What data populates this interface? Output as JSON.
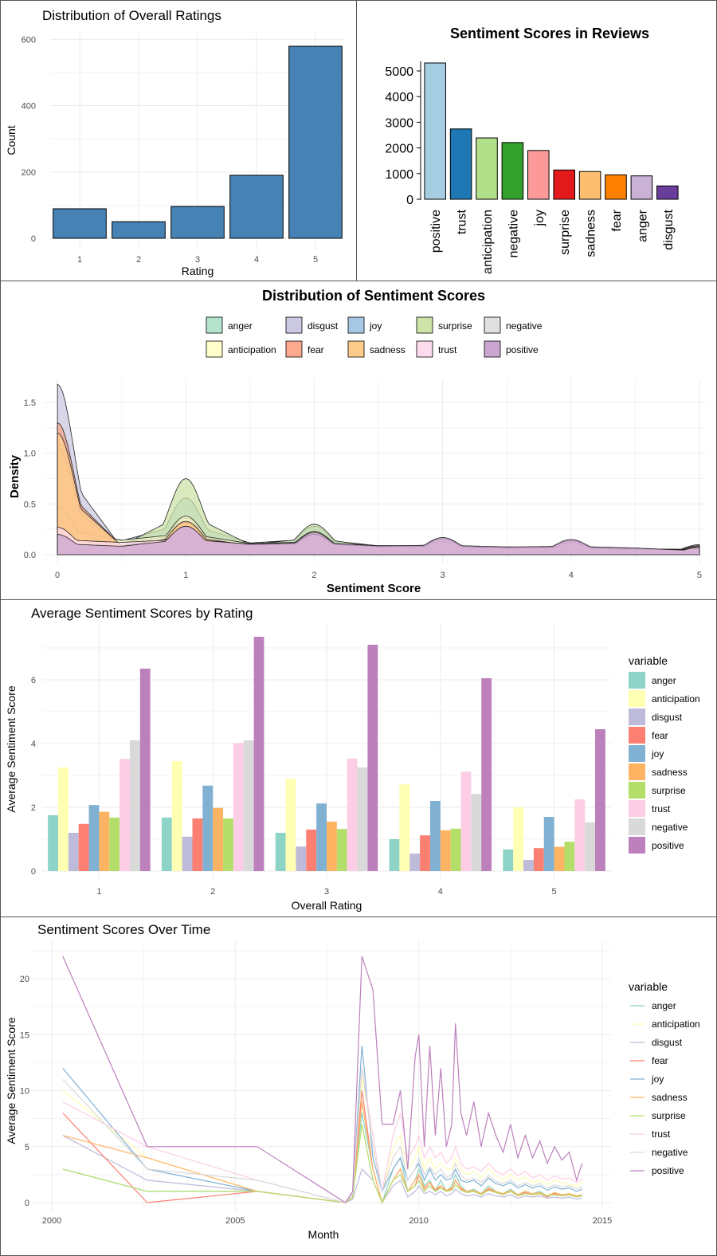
{
  "chart_data": [
    {
      "id": "ratings",
      "type": "bar",
      "title": "Distribution of Overall Ratings",
      "xlabel": "Rating",
      "ylabel": "Count",
      "categories": [
        "1",
        "2",
        "3",
        "4",
        "5"
      ],
      "values": [
        89,
        50,
        96,
        190,
        579
      ],
      "ylim": [
        0,
        620
      ],
      "yticks": [
        0,
        200,
        400,
        600
      ],
      "grid": true,
      "bar_color": "#4682b4"
    },
    {
      "id": "sentiment_totals",
      "type": "bar",
      "title": "Sentiment Scores in Reviews",
      "xlabel": "",
      "ylabel": "",
      "categories": [
        "positive",
        "trust",
        "anticipation",
        "negative",
        "joy",
        "surprise",
        "sadness",
        "fear",
        "anger",
        "disgust"
      ],
      "values": [
        5310,
        2740,
        2390,
        2210,
        1900,
        1140,
        1080,
        950,
        910,
        520
      ],
      "colors": [
        "#a6cee3",
        "#1f78b4",
        "#b2df8a",
        "#33a02c",
        "#fb9a99",
        "#e31a1c",
        "#fdbf6f",
        "#ff7f00",
        "#cab2d6",
        "#6a3d9a"
      ],
      "ylim": [
        0,
        5600
      ],
      "yticks": [
        0,
        1000,
        2000,
        3000,
        4000,
        5000
      ],
      "grid": false
    },
    {
      "id": "density",
      "type": "area",
      "title": "Distribution of Sentiment Scores",
      "xlabel": "Sentiment Score",
      "ylabel": "Density",
      "xlim": [
        -0.1,
        5.05
      ],
      "ylim": [
        -0.02,
        1.72
      ],
      "xticks": [
        0,
        1,
        2,
        3,
        4,
        5
      ],
      "yticks": [
        0.0,
        0.5,
        1.0,
        1.5
      ],
      "legend_position": "top",
      "grid": true,
      "series": [
        {
          "name": "anger",
          "color": "#b3e2cd",
          "values": [
            1.25,
            0.15,
            0.3,
            0.17,
            0.17,
            0.15,
            0.13,
            0.12,
            0.12,
            0.1,
            0.1
          ]
        },
        {
          "name": "disgust",
          "color": "#cbc9e2",
          "values": [
            1.68,
            0.12,
            0.32,
            0.16,
            0.18,
            0.12,
            0.12,
            0.1,
            0.12,
            0.08,
            0.07
          ]
        },
        {
          "name": "joy",
          "color": "#a6c8e4",
          "values": [
            0.48,
            0.25,
            0.56,
            0.21,
            0.28,
            0.16,
            0.16,
            0.12,
            0.13,
            0.09,
            0.08
          ]
        },
        {
          "name": "surprise",
          "color": "#cde3a8",
          "values": [
            1.05,
            0.16,
            0.75,
            0.18,
            0.3,
            0.14,
            0.13,
            0.11,
            0.11,
            0.08,
            0.07
          ]
        },
        {
          "name": "negative",
          "color": "#e0e0e0",
          "values": [
            0.33,
            0.22,
            0.36,
            0.2,
            0.21,
            0.16,
            0.15,
            0.13,
            0.13,
            0.1,
            0.08
          ]
        },
        {
          "name": "anticipation",
          "color": "#ffffcc",
          "values": [
            0.47,
            0.26,
            0.38,
            0.2,
            0.23,
            0.15,
            0.15,
            0.12,
            0.12,
            0.09,
            0.08
          ]
        },
        {
          "name": "fear",
          "color": "#fca98f",
          "values": [
            1.3,
            0.15,
            0.32,
            0.17,
            0.19,
            0.14,
            0.13,
            0.11,
            0.12,
            0.09,
            0.09
          ]
        },
        {
          "name": "sadness",
          "color": "#fdcc8a",
          "values": [
            1.2,
            0.16,
            0.33,
            0.17,
            0.2,
            0.14,
            0.13,
            0.11,
            0.12,
            0.09,
            0.08
          ]
        },
        {
          "name": "trust",
          "color": "#fcdcec",
          "values": [
            0.27,
            0.22,
            0.28,
            0.18,
            0.2,
            0.15,
            0.16,
            0.13,
            0.14,
            0.11,
            0.08
          ]
        },
        {
          "name": "positive",
          "color": "#cba6d1",
          "values": [
            0.2,
            0.15,
            0.28,
            0.19,
            0.22,
            0.16,
            0.17,
            0.14,
            0.15,
            0.12,
            0.07
          ]
        }
      ]
    },
    {
      "id": "avg_by_rating",
      "type": "bar",
      "title": "Average Sentiment Scores by Rating",
      "xlabel": "Overall Rating",
      "ylabel": "Average Sentiment Score",
      "legend_title": "variable",
      "legend_position": "right",
      "categories": [
        "1",
        "2",
        "3",
        "4",
        "5"
      ],
      "ylim": [
        0,
        7.6
      ],
      "yticks": [
        0,
        2,
        4,
        6
      ],
      "grid": true,
      "series": [
        {
          "name": "anger",
          "color": "#8dd3c7",
          "values": [
            1.75,
            1.68,
            1.2,
            1.0,
            0.68
          ]
        },
        {
          "name": "anticipation",
          "color": "#ffffb3",
          "values": [
            3.25,
            3.45,
            2.9,
            2.72,
            2.0
          ]
        },
        {
          "name": "disgust",
          "color": "#bebada",
          "values": [
            1.2,
            1.08,
            0.77,
            0.55,
            0.35
          ]
        },
        {
          "name": "fear",
          "color": "#fb8072",
          "values": [
            1.48,
            1.65,
            1.3,
            1.12,
            0.72
          ]
        },
        {
          "name": "joy",
          "color": "#80b1d3",
          "values": [
            2.07,
            2.68,
            2.12,
            2.2,
            1.7
          ]
        },
        {
          "name": "sadness",
          "color": "#fdb462",
          "values": [
            1.86,
            1.98,
            1.55,
            1.28,
            0.76
          ]
        },
        {
          "name": "surprise",
          "color": "#b3de69",
          "values": [
            1.68,
            1.65,
            1.32,
            1.33,
            0.92
          ]
        },
        {
          "name": "trust",
          "color": "#fccde5",
          "values": [
            3.52,
            4.02,
            3.53,
            3.12,
            2.25
          ]
        },
        {
          "name": "negative",
          "color": "#d9d9d9",
          "values": [
            4.1,
            4.1,
            3.25,
            2.42,
            1.53
          ]
        },
        {
          "name": "positive",
          "color": "#bc80bd",
          "values": [
            6.35,
            7.35,
            7.1,
            6.05,
            4.45
          ]
        }
      ]
    },
    {
      "id": "over_time",
      "type": "line",
      "title": "Sentiment Scores Over Time",
      "xlabel": "Month",
      "ylabel": "Average Sentiment Score",
      "legend_title": "variable",
      "legend_position": "right",
      "xlim": [
        1999.6,
        2015.6
      ],
      "ylim": [
        -0.6,
        23.2
      ],
      "xticks": [
        2000,
        2005,
        2010,
        2015
      ],
      "yticks": [
        0,
        5,
        10,
        15,
        20
      ],
      "grid": true,
      "x": [
        2000.3,
        2002.6,
        2005.6,
        2008.0,
        2008.2,
        2008.45,
        2008.75,
        2009.0,
        2009.3,
        2009.5,
        2009.7,
        2009.9,
        2010.0,
        2010.15,
        2010.3,
        2010.45,
        2010.6,
        2010.75,
        2010.9,
        2011.0,
        2011.15,
        2011.3,
        2011.5,
        2011.7,
        2011.9,
        2012.1,
        2012.3,
        2012.5,
        2012.7,
        2012.9,
        2013.1,
        2013.3,
        2013.5,
        2013.7,
        2013.9,
        2014.1,
        2014.3,
        2014.45
      ],
      "series": [
        {
          "name": "anger",
          "color": "#8dd3c7",
          "values": [
            3,
            1,
            1,
            0,
            0.5,
            8,
            3,
            0,
            3,
            4,
            1,
            2,
            3,
            1.5,
            2,
            1,
            2,
            1,
            1.5,
            2.5,
            1.5,
            1,
            1.2,
            0.8,
            1.5,
            1,
            0.8,
            1.2,
            0.7,
            1,
            0.8,
            1,
            0.6,
            0.9,
            0.7,
            0.8,
            0.6,
            0.7
          ]
        },
        {
          "name": "anticipation",
          "color": "#ffffb3",
          "values": [
            10,
            4,
            1,
            0,
            1,
            11,
            6,
            1,
            5,
            6,
            3,
            4,
            5,
            3,
            4,
            3,
            3.5,
            3,
            3,
            4,
            3,
            2.5,
            2.8,
            2.2,
            3,
            2.4,
            2,
            2.5,
            2,
            2.3,
            1.8,
            2,
            1.6,
            2,
            1.8,
            1.6,
            1.5,
            1.8
          ]
        },
        {
          "name": "disgust",
          "color": "#bebada",
          "values": [
            6,
            2,
            1,
            0,
            0.3,
            3,
            2,
            0,
            1.5,
            2,
            0.5,
            1,
            1.5,
            0.8,
            1,
            0.7,
            1,
            0.6,
            0.8,
            1.2,
            0.8,
            0.6,
            0.7,
            0.5,
            0.8,
            0.6,
            0.5,
            0.7,
            0.4,
            0.6,
            0.5,
            0.6,
            0.4,
            0.5,
            0.4,
            0.5,
            0.3,
            0.4
          ]
        },
        {
          "name": "fear",
          "color": "#fb8072",
          "values": [
            8,
            0,
            1,
            0,
            0.5,
            10,
            3,
            0,
            2,
            3,
            1,
            1.5,
            2.5,
            1.2,
            1.8,
            1,
            1.5,
            1,
            1.2,
            2,
            1.2,
            0.9,
            1,
            0.7,
            1.2,
            0.9,
            0.7,
            1,
            0.6,
            0.9,
            0.7,
            0.8,
            0.5,
            0.8,
            0.6,
            0.7,
            0.5,
            0.6
          ]
        },
        {
          "name": "joy",
          "color": "#80b1d3",
          "values": [
            12,
            3,
            1,
            0,
            0.8,
            14,
            4,
            1,
            3,
            4,
            2,
            3,
            3.5,
            2,
            3,
            2,
            2.5,
            2,
            2.2,
            3,
            2,
            1.8,
            2,
            1.5,
            2.2,
            1.7,
            1.5,
            1.8,
            1.3,
            1.6,
            1.3,
            1.5,
            1.1,
            1.4,
            1.2,
            1.3,
            1,
            1.2
          ]
        },
        {
          "name": "sadness",
          "color": "#fdb462",
          "values": [
            6,
            4,
            1,
            0,
            0.5,
            9,
            3,
            0,
            2,
            3,
            1,
            2,
            2.5,
            1.3,
            1.8,
            1.2,
            1.5,
            1.1,
            1.3,
            2,
            1.3,
            1,
            1.1,
            0.8,
            1.3,
            1,
            0.8,
            1.1,
            0.7,
            1,
            0.8,
            0.9,
            0.6,
            0.9,
            0.7,
            0.8,
            0.6,
            0.7
          ]
        },
        {
          "name": "surprise",
          "color": "#b3de69",
          "values": [
            3,
            1,
            1,
            0,
            0.5,
            7,
            2,
            0,
            2,
            2.5,
            1,
            1.5,
            2,
            1,
            1.5,
            1,
            1.3,
            1,
            1.1,
            1.6,
            1.1,
            0.9,
            1,
            0.7,
            1.1,
            0.9,
            0.7,
            1,
            0.6,
            0.8,
            0.7,
            0.8,
            0.6,
            0.7,
            0.6,
            0.7,
            0.5,
            0.6
          ]
        },
        {
          "name": "trust",
          "color": "#fccde5",
          "values": [
            9,
            5,
            2,
            0,
            1,
            12,
            6,
            1,
            6,
            8,
            4,
            5,
            6,
            4,
            5,
            4,
            4.5,
            3.5,
            4,
            5,
            3.5,
            3,
            3.2,
            2.8,
            3.5,
            2.8,
            2.5,
            3,
            2.4,
            2.8,
            2.2,
            2.5,
            2,
            2.4,
            2.1,
            2.2,
            1.8,
            2.1
          ]
        },
        {
          "name": "negative",
          "color": "#d9d9d9",
          "values": [
            11,
            3,
            2,
            0,
            0.8,
            12,
            5,
            1,
            4,
            5,
            2,
            3,
            4,
            2.5,
            3.2,
            2.5,
            3,
            2.2,
            2.5,
            3.5,
            2.4,
            2,
            2.2,
            1.8,
            2.4,
            1.9,
            1.7,
            2,
            1.5,
            1.8,
            1.5,
            1.7,
            1.3,
            1.6,
            1.4,
            1.5,
            1.2,
            1.4
          ]
        },
        {
          "name": "positive",
          "color": "#bc80bd",
          "values": [
            22,
            5,
            5,
            0,
            1,
            22,
            19,
            7,
            7,
            10,
            3,
            13,
            15,
            5,
            14,
            6,
            12,
            5,
            7,
            16,
            8,
            6,
            9,
            5,
            8,
            6,
            4.5,
            7,
            4,
            6,
            4,
            5.5,
            3.5,
            5,
            3.8,
            4.5,
            2,
            3.5
          ]
        }
      ]
    }
  ]
}
